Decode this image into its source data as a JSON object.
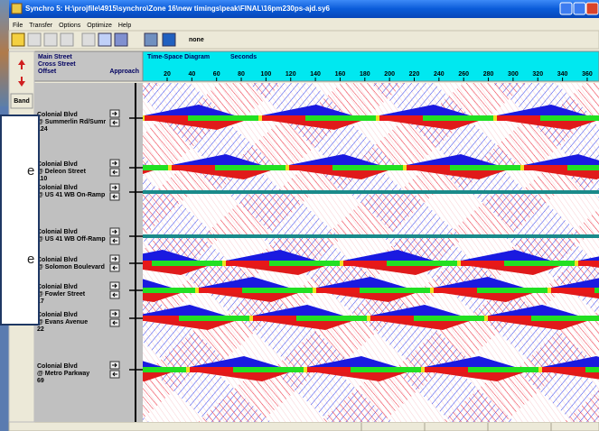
{
  "window": {
    "title": "Synchro 5: H:\\projfile\\4915\\synchro\\Zone 16\\new timings\\peak\\FINAL\\16pm230ps-ajd.sy6"
  },
  "menu": [
    "File",
    "Transfer",
    "Options",
    "Optimize",
    "Help"
  ],
  "toolbar": {
    "selection": "none"
  },
  "side_toolbar": {
    "band_button": "Band"
  },
  "header": {
    "main_street": "Main Street",
    "cross_street": "Cross Street",
    "offset": "Offset",
    "approach": "Approach",
    "diagram_title": "Time-Space Diagram",
    "time_unit": "Seconds",
    "time_ticks": [
      "20",
      "40",
      "60",
      "80",
      "100",
      "120",
      "140",
      "160",
      "180",
      "200",
      "220",
      "240",
      "260",
      "280",
      "300",
      "320",
      "340",
      "360"
    ]
  },
  "intersections": [
    {
      "main": "Colonial Blvd",
      "cross": "@ Summerlin Rd/Sumr",
      "offset": "124"
    },
    {
      "main": "Colonial Blvd",
      "cross": "@ Deleon Street",
      "offset": "110"
    },
    {
      "main": "Colonial Blvd",
      "cross": "@ US 41 WB On-Ramp"
    },
    {
      "main": "Colonial Blvd",
      "cross": "@ US 41 WB Off-Ramp"
    },
    {
      "main": "Colonial Blvd",
      "cross": "@ Solomon Boulevard"
    },
    {
      "main": "Colonial Blvd",
      "cross": "@ Fowler Street",
      "offset": "17"
    },
    {
      "main": "Colonial Blvd",
      "cross": "@ Evans Avenue",
      "offset": "22"
    },
    {
      "main": "Colonial Blvd",
      "cross": "@ Metro Parkway",
      "offset": "69"
    }
  ],
  "overlay": {
    "lines": [
      "e",
      "e"
    ]
  }
}
